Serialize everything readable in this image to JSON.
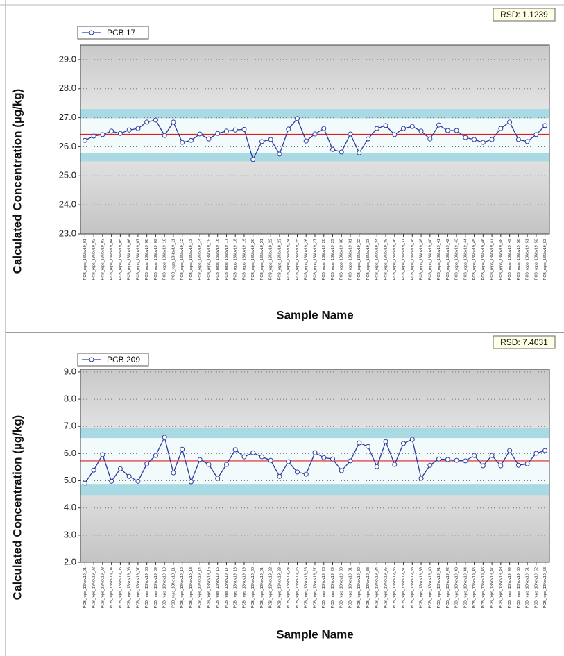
{
  "chart_data": [
    {
      "type": "line",
      "rsd": "RSD: 1.1239",
      "ylabel": "Calculated Concentration (µg/kg)",
      "xlabel": "Sample Name",
      "categories": [
        "PCB_reps_13Nov19_01",
        "PCB_reps_13Nov19_02",
        "PCB_reps_13Nov19_03",
        "PCB_reps_13Nov19_04",
        "PCB_reps_13Nov19_05",
        "PCB_reps_13Nov19_06",
        "PCB_reps_13Nov19_07",
        "PCB_reps_13Nov19_08",
        "PCB_reps_13Nov19_09",
        "PCB_reps_13Nov19_10",
        "PCB_reps_13Nov19_11",
        "PCB_reps_13Nov19_12",
        "PCB_reps_13Nov19_13",
        "PCB_reps_13Nov19_14",
        "PCB_reps_13Nov19_15",
        "PCB_reps_13Nov19_16",
        "PCB_reps_13Nov19_17",
        "PCB_reps_13Nov19_18",
        "PCB_reps_13Nov19_19",
        "PCB_reps_13Nov19_20",
        "PCB_reps_13Nov19_21",
        "PCB_reps_13Nov19_22",
        "PCB_reps_13Nov19_23",
        "PCB_reps_13Nov19_24",
        "PCB_reps_13Nov19_25",
        "PCB_reps_13Nov19_26",
        "PCB_reps_13Nov19_27",
        "PCB_reps_13Nov19_28",
        "PCB_reps_13Nov19_29",
        "PCB_reps_13Nov19_30",
        "PCB_reps_13Nov19_31",
        "PCB_reps_13Nov19_32",
        "PCB_reps_13Nov19_33",
        "PCB_reps_13Nov19_34",
        "PCB_reps_13Nov19_35",
        "PCB_reps_13Nov19_36",
        "PCB_reps_13Nov19_37",
        "PCB_reps_13Nov19_38",
        "PCB_reps_13Nov19_39",
        "PCB_reps_13Nov19_40",
        "PCB_reps_13Nov19_41",
        "PCB_reps_13Nov19_42",
        "PCB_reps_13Nov19_43",
        "PCB_reps_13Nov19_44",
        "PCB_reps_13Nov19_45",
        "PCB_reps_13Nov19_46",
        "PCB_reps_13Nov19_47",
        "PCB_reps_13Nov19_48",
        "PCB_reps_13Nov19_49",
        "PCB_reps_13Nov19_50",
        "PCB_reps_13Nov19_51",
        "PCB_reps_13Nov19_52",
        "PCB_reps_13Nov19_53"
      ],
      "series": [
        {
          "name": "PCB 17",
          "color": "#2b3a9c",
          "values": [
            26.22,
            26.37,
            26.42,
            26.54,
            26.46,
            26.58,
            26.63,
            26.85,
            26.92,
            26.39,
            26.85,
            26.15,
            26.22,
            26.44,
            26.27,
            26.46,
            26.54,
            26.58,
            26.6,
            25.56,
            26.18,
            26.25,
            25.75,
            26.61,
            26.97,
            26.2,
            26.44,
            26.63,
            25.91,
            25.82,
            26.44,
            25.79,
            26.27,
            26.63,
            26.73,
            26.42,
            26.63,
            26.7,
            26.54,
            26.27,
            26.75,
            26.56,
            26.56,
            26.32,
            26.25,
            26.15,
            26.25,
            26.63,
            26.85,
            26.25,
            26.18,
            26.42,
            26.73
          ]
        }
      ],
      "control_limits": {
        "mean": 26.43,
        "lower": [
          25.5,
          25.78
        ],
        "upper": [
          26.98,
          27.3
        ]
      },
      "ylim": [
        23,
        29.5
      ],
      "yticks": [
        {
          "value": 23,
          "label": "23.0"
        },
        {
          "value": 24,
          "label": "24.0"
        },
        {
          "value": 25,
          "label": "25.0"
        },
        {
          "value": 26,
          "label": "26.0"
        },
        {
          "value": 27,
          "label": "27.0"
        },
        {
          "value": 28,
          "label": "28.0"
        },
        {
          "value": 29,
          "label": "29.0"
        }
      ],
      "grid": true
    },
    {
      "type": "line",
      "rsd": "RSD: 7.4031",
      "ylabel": "Calculated Concentration (µg/kg)",
      "xlabel": "Sample Name",
      "categories": [
        "PCB_reps_13Nov19_01",
        "PCB_reps_13Nov19_02",
        "PCB_reps_13Nov19_03",
        "PCB_reps_13Nov19_04",
        "PCB_reps_13Nov19_05",
        "PCB_reps_13Nov19_06",
        "PCB_reps_13Nov19_07",
        "PCB_reps_13Nov19_08",
        "PCB_reps_13Nov19_09",
        "PCB_reps_13Nov19_10",
        "PCB_reps_13Nov19_11",
        "PCB_reps_13Nov19_12",
        "PCB_reps_13Nov19_13",
        "PCB_reps_13Nov19_14",
        "PCB_reps_13Nov19_15",
        "PCB_reps_13Nov19_16",
        "PCB_reps_13Nov19_17",
        "PCB_reps_13Nov19_18",
        "PCB_reps_13Nov19_19",
        "PCB_reps_13Nov19_20",
        "PCB_reps_13Nov19_21",
        "PCB_reps_13Nov19_22",
        "PCB_reps_13Nov19_23",
        "PCB_reps_13Nov19_24",
        "PCB_reps_13Nov19_25",
        "PCB_reps_13Nov19_26",
        "PCB_reps_13Nov19_27",
        "PCB_reps_13Nov19_28",
        "PCB_reps_13Nov19_29",
        "PCB_reps_13Nov19_30",
        "PCB_reps_13Nov19_31",
        "PCB_reps_13Nov19_32",
        "PCB_reps_13Nov19_33",
        "PCB_reps_13Nov19_34",
        "PCB_reps_13Nov19_35",
        "PCB_reps_13Nov19_36",
        "PCB_reps_13Nov19_37",
        "PCB_reps_13Nov19_38",
        "PCB_reps_13Nov19_39",
        "PCB_reps_13Nov19_40",
        "PCB_reps_13Nov19_41",
        "PCB_reps_13Nov19_42",
        "PCB_reps_13Nov19_43",
        "PCB_reps_13Nov19_44",
        "PCB_reps_13Nov19_45",
        "PCB_reps_13Nov19_46",
        "PCB_reps_13Nov19_47",
        "PCB_reps_13Nov19_48",
        "PCB_reps_13Nov19_49",
        "PCB_reps_13Nov19_50",
        "PCB_reps_13Nov19_51",
        "PCB_reps_13Nov19_52",
        "PCB_reps_13Nov19_53"
      ],
      "series": [
        {
          "name": "PCB 209",
          "color": "#2b3a9c",
          "values": [
            4.91,
            5.39,
            5.96,
            4.98,
            5.44,
            5.16,
            4.98,
            5.62,
            5.93,
            6.6,
            5.29,
            6.16,
            4.96,
            5.78,
            5.6,
            5.09,
            5.6,
            6.14,
            5.88,
            6.03,
            5.88,
            5.75,
            5.16,
            5.7,
            5.32,
            5.24,
            6.03,
            5.85,
            5.8,
            5.37,
            5.73,
            6.39,
            6.26,
            5.52,
            6.44,
            5.6,
            6.37,
            6.52,
            5.09,
            5.57,
            5.8,
            5.78,
            5.75,
            5.73,
            5.93,
            5.55,
            5.93,
            5.55,
            6.11,
            5.57,
            5.62,
            6.01,
            6.11
          ]
        }
      ],
      "control_limits": {
        "mean": 5.73,
        "lower": [
          4.47,
          4.88
        ],
        "upper": [
          6.57,
          6.93
        ]
      },
      "ylim": [
        2,
        9.1
      ],
      "yticks": [
        {
          "value": 2,
          "label": "2.0"
        },
        {
          "value": 3,
          "label": "3.0"
        },
        {
          "value": 4,
          "label": "4.0"
        },
        {
          "value": 5,
          "label": "5.0"
        },
        {
          "value": 6,
          "label": "6.0"
        },
        {
          "value": 7,
          "label": "7.0"
        },
        {
          "value": 8,
          "label": "8.0"
        },
        {
          "value": 9,
          "label": "9.0"
        }
      ],
      "grid": true
    }
  ]
}
